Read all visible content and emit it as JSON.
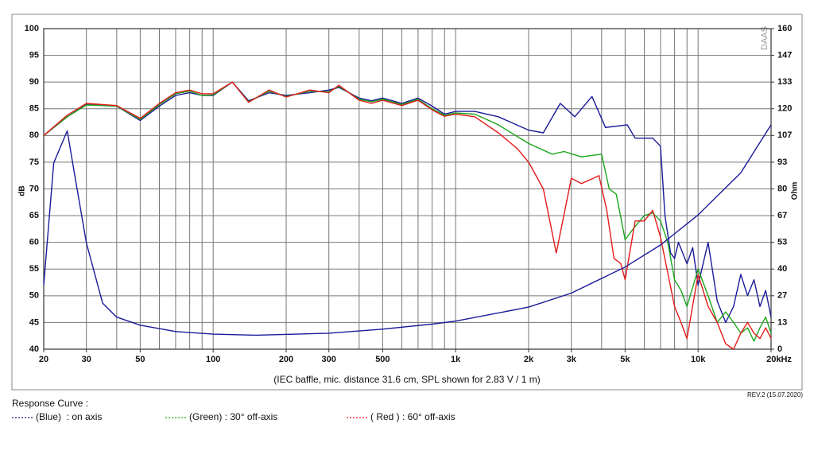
{
  "chart_data": {
    "type": "line",
    "xscale": "log",
    "xlim": [
      20,
      20000
    ],
    "ylim": [
      40,
      100
    ],
    "y2lim": [
      0,
      160
    ],
    "ylabel": "dB",
    "y2label": "Ohm",
    "watermark": "DAAS",
    "caption": "(IEC baffle, mic. distance 31.6 cm, SPL shown for 2.83 V / 1 m)",
    "revision": "REV.2 (15.07.2020)",
    "legend_title": "Response Curve :",
    "grid": true,
    "xticks": [
      20,
      30,
      50,
      100,
      200,
      300,
      500,
      {
        "value": 1000,
        "label": "1k"
      },
      {
        "value": 2000,
        "label": "2k"
      },
      {
        "value": 3000,
        "label": "3k"
      },
      {
        "value": 5000,
        "label": "5k"
      },
      {
        "value": 10000,
        "label": "10k"
      },
      {
        "value": 20000,
        "label": "20kHz"
      }
    ],
    "x_gridlines": [
      20,
      30,
      40,
      50,
      60,
      70,
      80,
      90,
      100,
      200,
      300,
      400,
      500,
      600,
      700,
      800,
      900,
      1000,
      2000,
      3000,
      4000,
      5000,
      6000,
      7000,
      8000,
      9000,
      10000,
      20000
    ],
    "yticks": [
      40,
      45,
      50,
      55,
      60,
      65,
      70,
      75,
      80,
      85,
      90,
      95,
      100
    ],
    "y2ticks": [
      0,
      {
        "value": 13.33,
        "label": "13"
      },
      {
        "value": 26.67,
        "label": "27"
      },
      40,
      {
        "value": 53.33,
        "label": "53"
      },
      {
        "value": 66.67,
        "label": "67"
      },
      80,
      {
        "value": 93.33,
        "label": "93"
      },
      {
        "value": 106.67,
        "label": "107"
      },
      120,
      {
        "value": 133.33,
        "label": "133"
      },
      {
        "value": 146.67,
        "label": "147"
      },
      160
    ],
    "series": [
      {
        "name": "(Blue)  : on axis",
        "color": "#1a1a9a",
        "x": [
          20,
          25,
          30,
          40,
          50,
          60,
          70,
          80,
          90,
          100,
          120,
          140,
          170,
          200,
          250,
          300,
          330,
          400,
          450,
          500,
          600,
          700,
          800,
          900,
          1000,
          1200,
          1500,
          2000,
          2300,
          2700,
          3100,
          3650,
          4150,
          5100,
          5500,
          6500,
          7000,
          7300,
          7700,
          8000,
          8300,
          9000,
          9500,
          10000,
          11000,
          12000,
          13000,
          14000,
          15000,
          16000,
          17000,
          18000,
          19000,
          20000
        ],
        "values": [
          80,
          83.5,
          85.8,
          85.5,
          82.8,
          85.5,
          87.5,
          88,
          87.5,
          87.5,
          90,
          86.5,
          88,
          87.5,
          88,
          88.5,
          89,
          87,
          86.5,
          87,
          86,
          87,
          85.5,
          84,
          84.5,
          84.5,
          83.5,
          81,
          80.5,
          86,
          83.5,
          87.3,
          81.5,
          82,
          79.5,
          79.5,
          78,
          65,
          58,
          57,
          60,
          56,
          59,
          52,
          60,
          49,
          45,
          48,
          54,
          50,
          53,
          48,
          51,
          46
        ]
      },
      {
        "name": "(Green) : 30° off-axis",
        "color": "#1aa51a",
        "x": [
          20,
          25,
          30,
          40,
          50,
          60,
          70,
          80,
          90,
          100,
          120,
          140,
          170,
          200,
          250,
          300,
          330,
          400,
          450,
          500,
          600,
          700,
          800,
          900,
          1000,
          1200,
          1500,
          2000,
          2500,
          2800,
          3300,
          4000,
          4300,
          4600,
          5000,
          5500,
          6000,
          6500,
          7000,
          7500,
          8000,
          8500,
          9000,
          10000,
          11000,
          12000,
          13000,
          14000,
          15000,
          16000,
          17000,
          18000,
          19000,
          20000
        ],
        "values": [
          80,
          83.5,
          85.7,
          85.5,
          83,
          85.8,
          87.8,
          88.3,
          87.5,
          87.6,
          90,
          86.3,
          88.3,
          87.3,
          88.3,
          88.2,
          89.2,
          86.8,
          86.3,
          86.8,
          85.8,
          86.8,
          85,
          83.8,
          84.2,
          84,
          82,
          78.5,
          76.5,
          77,
          76,
          76.5,
          70,
          69,
          60.5,
          63,
          65,
          65.5,
          64,
          60,
          53,
          51,
          48,
          55,
          50,
          45,
          47,
          45,
          43,
          44,
          41.5,
          44,
          46,
          43
        ]
      },
      {
        "name": "( Red ) : 60° off-axis",
        "color": "#e41a1a",
        "x": [
          20,
          25,
          30,
          40,
          50,
          60,
          70,
          80,
          90,
          100,
          120,
          140,
          170,
          200,
          250,
          300,
          330,
          400,
          450,
          500,
          600,
          700,
          800,
          900,
          1000,
          1200,
          1500,
          1800,
          2000,
          2300,
          2600,
          3000,
          3300,
          3700,
          3900,
          4200,
          4500,
          4800,
          5000,
          5500,
          6000,
          6500,
          7000,
          8000,
          8500,
          9000,
          10000,
          11000,
          12000,
          13000,
          14000,
          15000,
          16000,
          17000,
          18000,
          19000,
          20000
        ],
        "values": [
          80,
          83.8,
          86,
          85.6,
          83.2,
          86,
          88,
          88.5,
          87.8,
          87.8,
          90,
          86.2,
          88.5,
          87.2,
          88.5,
          88,
          89.4,
          86.6,
          86,
          86.6,
          85.6,
          86.6,
          84.8,
          83.6,
          84,
          83.5,
          80.5,
          77.5,
          75,
          70,
          58,
          72,
          71,
          72,
          72.5,
          66,
          57,
          56,
          53,
          64,
          64,
          66,
          61,
          48,
          45,
          42,
          54,
          48,
          45,
          41,
          40,
          43,
          45,
          43,
          42,
          44,
          42
        ]
      },
      {
        "color": "#1a1a9a",
        "axis": "y2",
        "x": [
          20,
          22,
          25,
          27,
          30,
          35,
          40,
          50,
          70,
          100,
          150,
          300,
          500,
          800,
          1000,
          2000,
          3000,
          5000,
          7000,
          10000,
          15000,
          20000
        ],
        "values": [
          32,
          93,
          109,
          85,
          53,
          23,
          16,
          12,
          8.8,
          7.5,
          7,
          8,
          10,
          12.5,
          14,
          21,
          28,
          41,
          52,
          67,
          88,
          112
        ]
      }
    ]
  }
}
